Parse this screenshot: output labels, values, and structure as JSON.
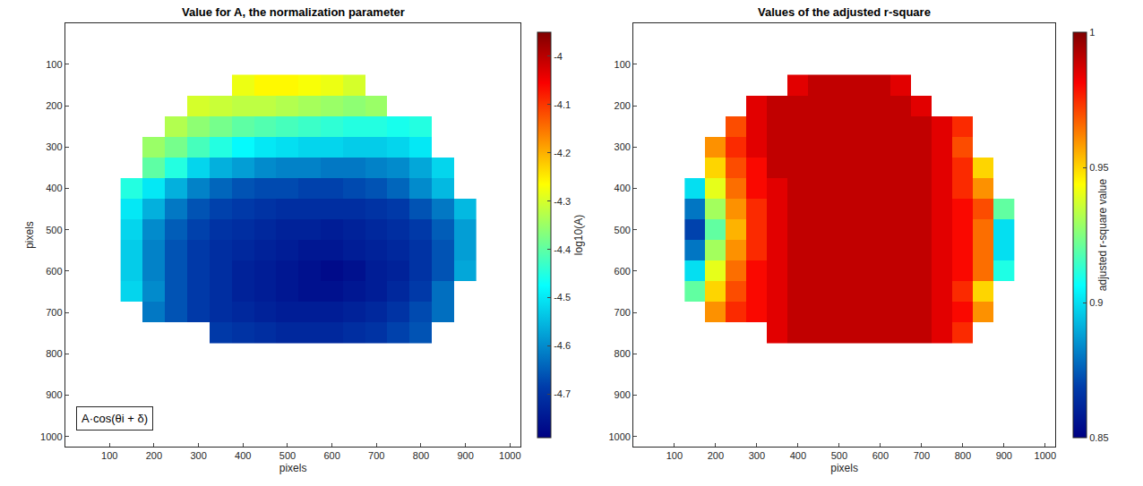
{
  "chart_data": [
    {
      "type": "heatmap",
      "title": "Value for A, the normalization parameter",
      "x_label": "pixels",
      "y_label": "pixels",
      "x": [
        150,
        200,
        250,
        300,
        350,
        400,
        450,
        500,
        550,
        600,
        650,
        700,
        750,
        800,
        850,
        900
      ],
      "y": [
        150,
        200,
        250,
        300,
        350,
        400,
        450,
        500,
        550,
        600,
        650,
        700,
        750
      ],
      "z": [
        [
          null,
          null,
          null,
          null,
          null,
          -4.28,
          -4.26,
          -4.26,
          -4.27,
          -4.28,
          -4.3,
          null,
          null,
          null,
          null,
          null
        ],
        [
          null,
          null,
          null,
          -4.3,
          -4.31,
          -4.32,
          -4.32,
          -4.33,
          -4.34,
          -4.35,
          -4.36,
          -4.35,
          null,
          null,
          null,
          null
        ],
        [
          null,
          null,
          -4.33,
          -4.36,
          -4.38,
          -4.4,
          -4.41,
          -4.42,
          -4.43,
          -4.44,
          -4.45,
          -4.45,
          -4.46,
          -4.45,
          null,
          null
        ],
        [
          null,
          -4.35,
          -4.38,
          -4.42,
          -4.45,
          -4.48,
          -4.5,
          -4.51,
          -4.52,
          -4.52,
          -4.53,
          -4.53,
          -4.52,
          -4.5,
          null,
          null
        ],
        [
          null,
          -4.4,
          -4.45,
          -4.52,
          -4.56,
          -4.58,
          -4.6,
          -4.61,
          -4.61,
          -4.62,
          -4.62,
          -4.61,
          -4.6,
          -4.57,
          -4.52,
          null
        ],
        [
          -4.45,
          -4.5,
          -4.56,
          -4.61,
          -4.64,
          -4.66,
          -4.67,
          -4.67,
          -4.68,
          -4.68,
          -4.67,
          -4.66,
          -4.64,
          -4.6,
          -4.55,
          null
        ],
        [
          -4.5,
          -4.56,
          -4.62,
          -4.66,
          -4.68,
          -4.69,
          -4.7,
          -4.71,
          -4.71,
          -4.71,
          -4.71,
          -4.7,
          -4.69,
          -4.66,
          -4.62,
          -4.55
        ],
        [
          -4.52,
          -4.6,
          -4.65,
          -4.68,
          -4.7,
          -4.71,
          -4.72,
          -4.73,
          -4.73,
          -4.74,
          -4.73,
          -4.72,
          -4.71,
          -4.69,
          -4.65,
          -4.58
        ],
        [
          -4.53,
          -4.61,
          -4.66,
          -4.69,
          -4.71,
          -4.72,
          -4.73,
          -4.74,
          -4.75,
          -4.75,
          -4.74,
          -4.73,
          -4.72,
          -4.7,
          -4.66,
          -4.58
        ],
        [
          -4.53,
          -4.61,
          -4.66,
          -4.69,
          -4.71,
          -4.73,
          -4.74,
          -4.75,
          -4.76,
          -4.77,
          -4.76,
          -4.74,
          -4.73,
          -4.7,
          -4.66,
          -4.57
        ],
        [
          -4.52,
          -4.6,
          -4.66,
          -4.69,
          -4.71,
          -4.73,
          -4.74,
          -4.75,
          -4.76,
          -4.76,
          -4.75,
          -4.74,
          -4.72,
          -4.69,
          -4.63,
          null
        ],
        [
          null,
          -4.62,
          -4.66,
          -4.69,
          -4.71,
          -4.72,
          -4.73,
          -4.74,
          -4.74,
          -4.74,
          -4.73,
          -4.72,
          -4.7,
          -4.67,
          -4.63,
          null
        ],
        [
          null,
          null,
          null,
          null,
          -4.69,
          -4.7,
          -4.71,
          -4.72,
          -4.72,
          -4.72,
          -4.71,
          -4.7,
          -4.68,
          -4.66,
          null,
          null
        ]
      ],
      "xlim": [
        0.5,
        1024.5
      ],
      "ylim": [
        1024.5,
        0.5
      ],
      "xticks": [
        100,
        200,
        300,
        400,
        500,
        600,
        700,
        800,
        900,
        1000
      ],
      "yticks": [
        100,
        200,
        300,
        400,
        500,
        600,
        700,
        800,
        900,
        1000
      ],
      "colorbar": {
        "label": "log10(A)",
        "range": [
          -4.79,
          -3.95
        ],
        "ticks": [
          -4.7,
          -4.6,
          -4.5,
          -4.4,
          -4.3,
          -4.2,
          -4.1,
          -4
        ]
      },
      "annotations": [
        {
          "text": "A·cos(θi + δ)"
        }
      ]
    },
    {
      "type": "heatmap",
      "title": "Values of the adjusted r-square",
      "x_label": "pixels",
      "x": [
        150,
        200,
        250,
        300,
        350,
        400,
        450,
        500,
        550,
        600,
        650,
        700,
        750,
        800,
        850,
        900
      ],
      "y": [
        150,
        200,
        250,
        300,
        350,
        400,
        450,
        500,
        550,
        600,
        650,
        700,
        750
      ],
      "z": [
        [
          null,
          null,
          null,
          null,
          null,
          0.985,
          0.99,
          0.99,
          0.99,
          0.99,
          0.985,
          null,
          null,
          null,
          null,
          null
        ],
        [
          null,
          null,
          null,
          0.985,
          0.99,
          0.99,
          0.99,
          0.99,
          0.99,
          0.99,
          0.99,
          0.985,
          null,
          null,
          null,
          null
        ],
        [
          null,
          null,
          0.97,
          0.985,
          0.99,
          0.99,
          0.99,
          0.99,
          0.99,
          0.99,
          0.99,
          0.99,
          0.985,
          0.975,
          null,
          null
        ],
        [
          null,
          0.96,
          0.975,
          0.985,
          0.99,
          0.99,
          0.99,
          0.99,
          0.99,
          0.99,
          0.99,
          0.99,
          0.985,
          0.97,
          null,
          null
        ],
        [
          null,
          0.95,
          0.97,
          0.98,
          0.99,
          0.99,
          0.99,
          0.99,
          0.99,
          0.99,
          0.99,
          0.99,
          0.985,
          0.975,
          0.95,
          null
        ],
        [
          0.9,
          0.94,
          0.965,
          0.98,
          0.985,
          0.99,
          0.99,
          0.99,
          0.99,
          0.99,
          0.99,
          0.99,
          0.985,
          0.975,
          0.96,
          null
        ],
        [
          0.88,
          0.93,
          0.96,
          0.975,
          0.985,
          0.99,
          0.99,
          0.99,
          0.99,
          0.99,
          0.99,
          0.99,
          0.985,
          0.98,
          0.97,
          0.92
        ],
        [
          0.87,
          0.92,
          0.955,
          0.975,
          0.985,
          0.99,
          0.99,
          0.99,
          0.99,
          0.99,
          0.99,
          0.99,
          0.985,
          0.98,
          0.965,
          0.9
        ],
        [
          0.88,
          0.93,
          0.96,
          0.975,
          0.985,
          0.99,
          0.99,
          0.99,
          0.99,
          0.99,
          0.99,
          0.99,
          0.985,
          0.98,
          0.965,
          0.9
        ],
        [
          0.9,
          0.94,
          0.965,
          0.98,
          0.985,
          0.99,
          0.99,
          0.99,
          0.99,
          0.99,
          0.99,
          0.99,
          0.985,
          0.98,
          0.965,
          0.91
        ],
        [
          0.92,
          0.95,
          0.97,
          0.98,
          0.985,
          0.99,
          0.99,
          0.99,
          0.99,
          0.99,
          0.99,
          0.99,
          0.985,
          0.975,
          0.95,
          null
        ],
        [
          null,
          0.96,
          0.975,
          0.98,
          0.985,
          0.99,
          0.99,
          0.99,
          0.99,
          0.99,
          0.99,
          0.99,
          0.985,
          0.98,
          0.96,
          null
        ],
        [
          null,
          null,
          null,
          null,
          0.985,
          0.99,
          0.99,
          0.99,
          0.99,
          0.99,
          0.99,
          0.99,
          0.985,
          0.975,
          null,
          null
        ]
      ],
      "xlim": [
        0.5,
        1024.5
      ],
      "ylim": [
        1024.5,
        0.5
      ],
      "xticks": [
        100,
        200,
        300,
        400,
        500,
        600,
        700,
        800,
        900,
        1000
      ],
      "yticks": [
        100,
        200,
        300,
        400,
        500,
        600,
        700,
        800,
        900,
        1000
      ],
      "colorbar": {
        "label": "adjusted r-square value",
        "range": [
          0.85,
          1
        ],
        "ticks": [
          0.85,
          0.9,
          0.95,
          1
        ]
      }
    }
  ]
}
